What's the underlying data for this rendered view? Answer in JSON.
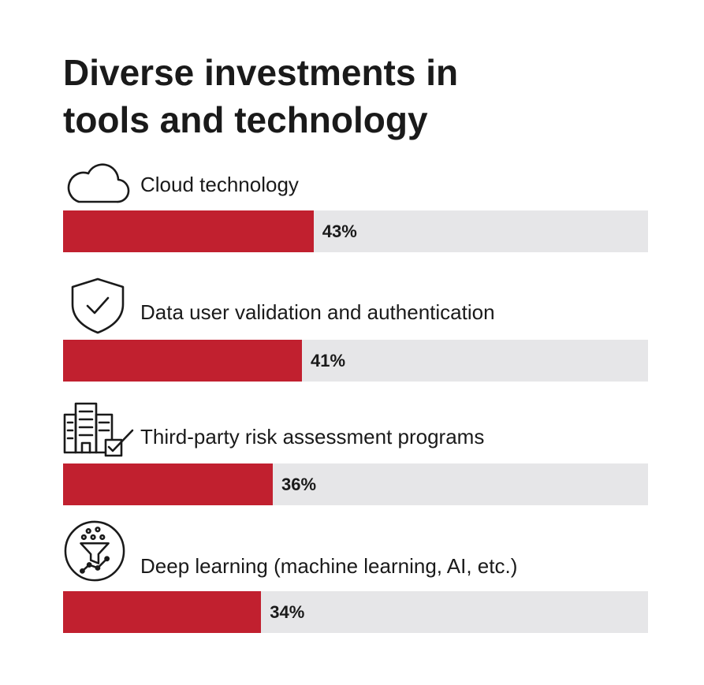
{
  "chart_data": {
    "type": "bar",
    "orientation": "horizontal",
    "title_lines": [
      "Diverse investments in",
      "tools and technology"
    ],
    "categories": [
      "Cloud technology",
      "Data user validation and authentication",
      "Third-party risk assessment programs",
      "Deep learning (machine learning, AI, etc.)"
    ],
    "values": [
      43,
      41,
      36,
      34
    ],
    "value_labels": [
      "43%",
      "41%",
      "36%",
      "34%"
    ],
    "icons": [
      "cloud-icon",
      "shield-check-icon",
      "buildings-checkbox-icon",
      "funnel-data-icon"
    ],
    "xlim": [
      0,
      100
    ],
    "grid": false,
    "legend": "none",
    "colors": {
      "bar": "#c1202f",
      "track": "#e6e6e8",
      "text": "#1a1a1a"
    }
  }
}
